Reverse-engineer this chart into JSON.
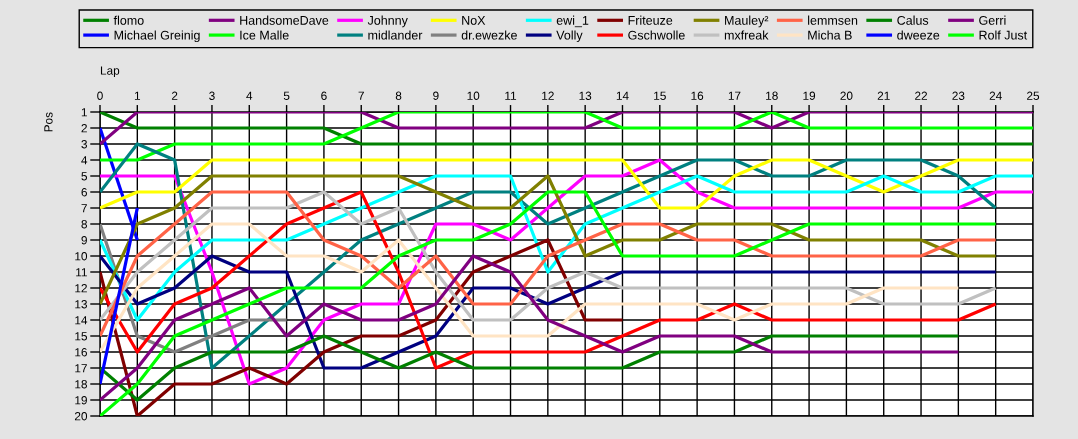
{
  "chart_data": {
    "type": "line",
    "xlabel": "Lap",
    "ylabel": "Pos",
    "x": [
      0,
      1,
      2,
      3,
      4,
      5,
      6,
      7,
      8,
      9,
      10,
      11,
      12,
      13,
      14,
      15,
      16,
      17,
      18,
      19,
      20,
      21,
      22,
      23,
      24,
      25
    ],
    "xlim": [
      0,
      25
    ],
    "xticks": [
      0,
      1,
      2,
      3,
      4,
      5,
      6,
      7,
      8,
      9,
      10,
      11,
      12,
      13,
      14,
      15,
      16,
      17,
      18,
      19,
      20,
      21,
      22,
      23,
      24,
      25
    ],
    "ylim": [
      20,
      1
    ],
    "yticks": [
      1,
      2,
      3,
      4,
      5,
      6,
      7,
      8,
      9,
      10,
      11,
      12,
      13,
      14,
      15,
      16,
      17,
      18,
      19,
      20
    ],
    "grid": true,
    "legend": "top",
    "series": [
      {
        "name": "flomo",
        "color": "#008000",
        "values": [
          1,
          2,
          2,
          2,
          2,
          2,
          2,
          3,
          3,
          3,
          3,
          3,
          3,
          3,
          3,
          3,
          3,
          3,
          3,
          3,
          3,
          3,
          3,
          3,
          3,
          3
        ]
      },
      {
        "name": "Michael Greinig",
        "color": "#0000ff",
        "values": [
          2,
          9,
          null,
          null,
          null,
          null,
          null,
          null,
          null,
          null,
          null,
          null,
          null,
          null,
          null,
          null,
          null,
          null,
          null,
          null,
          null,
          null,
          null,
          null,
          null,
          null
        ]
      },
      {
        "name": "HandsomeDave",
        "color": "#800080",
        "values": [
          3,
          1,
          1,
          1,
          1,
          1,
          1,
          1,
          2,
          2,
          2,
          2,
          2,
          2,
          1,
          1,
          1,
          1,
          2,
          1,
          1,
          1,
          1,
          1,
          1,
          1
        ]
      },
      {
        "name": "Ice Malle",
        "color": "#00ff00",
        "values": [
          4,
          4,
          3,
          3,
          3,
          3,
          3,
          2,
          1,
          1,
          1,
          1,
          1,
          1,
          2,
          2,
          2,
          2,
          1,
          2,
          2,
          2,
          2,
          2,
          2,
          2
        ]
      },
      {
        "name": "Johnny",
        "color": "#ff00ff",
        "values": [
          5,
          5,
          5,
          11,
          18,
          17,
          14,
          13,
          13,
          8,
          8,
          9,
          7,
          5,
          5,
          4,
          6,
          7,
          7,
          7,
          7,
          7,
          7,
          7,
          6,
          6
        ]
      },
      {
        "name": "midlander",
        "color": "#008080",
        "values": [
          6,
          3,
          4,
          17,
          15,
          13,
          11,
          9,
          8,
          7,
          6,
          6,
          8,
          7,
          6,
          5,
          4,
          4,
          5,
          5,
          4,
          4,
          4,
          5,
          7,
          null
        ]
      },
      {
        "name": "NoX",
        "color": "#ffff00",
        "values": [
          7,
          6,
          6,
          4,
          4,
          4,
          4,
          4,
          4,
          4,
          4,
          4,
          4,
          4,
          4,
          7,
          7,
          5,
          4,
          4,
          5,
          6,
          5,
          4,
          4,
          4
        ]
      },
      {
        "name": "dr.ewezke",
        "color": "#808080",
        "values": [
          8,
          15,
          16,
          15,
          14,
          14,
          null,
          null,
          null,
          null,
          null,
          null,
          null,
          null,
          null,
          null,
          null,
          null,
          null,
          null,
          null,
          null,
          null,
          null,
          null,
          null
        ]
      },
      {
        "name": "ewi_1",
        "color": "#00ffff",
        "values": [
          9,
          14,
          11,
          9,
          9,
          9,
          8,
          7,
          6,
          5,
          5,
          5,
          11,
          8,
          7,
          6,
          5,
          6,
          6,
          6,
          6,
          5,
          6,
          6,
          5,
          5
        ]
      },
      {
        "name": "Volly",
        "color": "#000080",
        "values": [
          10,
          13,
          12,
          10,
          11,
          11,
          17,
          17,
          16,
          15,
          12,
          12,
          13,
          12,
          11,
          11,
          11,
          11,
          11,
          11,
          11,
          11,
          11,
          11,
          11,
          null
        ]
      },
      {
        "name": "Friteuze",
        "color": "#800000",
        "values": [
          11,
          20,
          18,
          18,
          17,
          18,
          16,
          15,
          15,
          14,
          11,
          10,
          9,
          14,
          14,
          null,
          null,
          null,
          null,
          null,
          null,
          null,
          null,
          null,
          null,
          null
        ]
      },
      {
        "name": "Gschwolle",
        "color": "#ff0000",
        "values": [
          12,
          16,
          13,
          12,
          10,
          8,
          7,
          6,
          11,
          17,
          16,
          16,
          16,
          16,
          15,
          14,
          14,
          13,
          14,
          14,
          14,
          14,
          14,
          14,
          13,
          null
        ]
      },
      {
        "name": "Mauley²",
        "color": "#808000",
        "values": [
          13,
          8,
          7,
          5,
          5,
          5,
          5,
          5,
          5,
          6,
          7,
          7,
          5,
          10,
          9,
          9,
          8,
          8,
          8,
          9,
          9,
          9,
          9,
          10,
          10,
          null
        ]
      },
      {
        "name": "mxfreak",
        "color": "#c0c0c0",
        "values": [
          14,
          11,
          9,
          7,
          7,
          7,
          6,
          8,
          7,
          11,
          14,
          14,
          12,
          11,
          12,
          12,
          12,
          12,
          12,
          12,
          12,
          13,
          13,
          13,
          12,
          null
        ]
      },
      {
        "name": "lemmsen",
        "color": "#ff6347",
        "values": [
          15,
          10,
          8,
          6,
          6,
          6,
          9,
          10,
          12,
          10,
          13,
          13,
          10,
          9,
          8,
          8,
          9,
          9,
          10,
          10,
          10,
          10,
          10,
          9,
          9,
          null
        ]
      },
      {
        "name": "Micha B",
        "color": "#ffe4c4",
        "values": [
          16,
          12,
          10,
          8,
          8,
          10,
          10,
          11,
          9,
          12,
          15,
          15,
          15,
          13,
          13,
          13,
          13,
          14,
          13,
          13,
          13,
          12,
          12,
          12,
          null,
          null
        ]
      },
      {
        "name": "Calus",
        "color": "#008000",
        "values": [
          17,
          19,
          17,
          16,
          16,
          16,
          15,
          16,
          17,
          16,
          17,
          17,
          17,
          17,
          17,
          16,
          16,
          16,
          15,
          15,
          15,
          15,
          15,
          15,
          null,
          null
        ]
      },
      {
        "name": "dweeze",
        "color": "#0000ff",
        "values": [
          18,
          7,
          null,
          null,
          null,
          null,
          null,
          null,
          null,
          null,
          null,
          null,
          null,
          null,
          null,
          null,
          null,
          null,
          null,
          null,
          null,
          null,
          null,
          null,
          null,
          null
        ]
      },
      {
        "name": "Gerri",
        "color": "#800080",
        "values": [
          19,
          17,
          14,
          13,
          12,
          15,
          13,
          14,
          14,
          13,
          10,
          11,
          14,
          15,
          16,
          15,
          15,
          15,
          16,
          16,
          16,
          16,
          16,
          16,
          null,
          null
        ]
      },
      {
        "name": "Rolf Just",
        "color": "#00ff00",
        "values": [
          20,
          18,
          15,
          14,
          13,
          12,
          12,
          12,
          10,
          9,
          9,
          8,
          6,
          6,
          10,
          10,
          10,
          10,
          9,
          8,
          8,
          8,
          8,
          8,
          8,
          null
        ]
      }
    ]
  }
}
